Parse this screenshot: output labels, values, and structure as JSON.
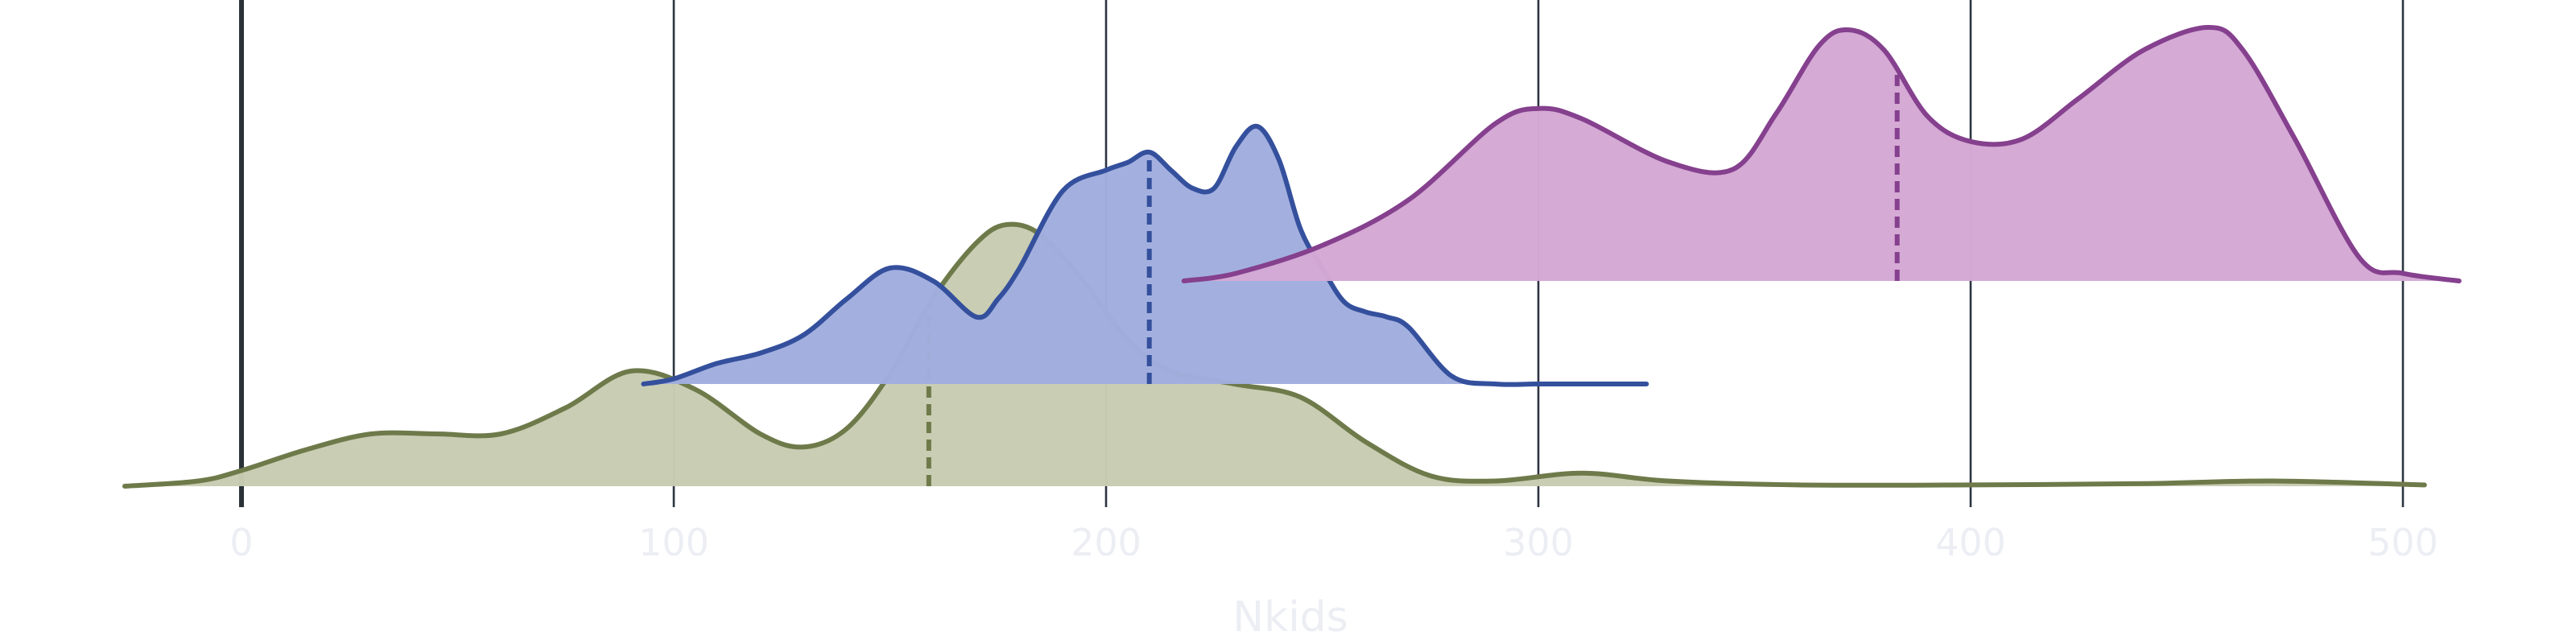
{
  "chart_data": {
    "type": "area",
    "subtype": "ridgeline density",
    "title": "",
    "xlabel": "Nkids",
    "ylabel": "",
    "xlim": [
      -27,
      513
    ],
    "xticks": [
      0,
      100,
      200,
      300,
      400,
      500
    ],
    "grid": "vertical lines only",
    "legend": "none",
    "series": [
      {
        "row": 0,
        "color": "#6e7a4a",
        "fill": "#c8ccb1",
        "median": 159,
        "x": [
          -27,
          -10,
          0,
          15,
          30,
          45,
          60,
          75,
          90,
          105,
          120,
          130,
          140,
          150,
          160,
          170,
          177,
          185,
          195,
          205,
          215,
          230,
          245,
          260,
          275,
          290,
          310,
          330,
          360,
          400,
          440,
          470,
          505
        ],
        "density": [
          0.0,
          0.02,
          0.06,
          0.14,
          0.2,
          0.2,
          0.2,
          0.3,
          0.44,
          0.37,
          0.2,
          0.15,
          0.22,
          0.43,
          0.72,
          0.93,
          1.0,
          0.96,
          0.78,
          0.56,
          0.44,
          0.39,
          0.34,
          0.17,
          0.04,
          0.02,
          0.05,
          0.02,
          0.005,
          0.005,
          0.01,
          0.02,
          0.005
        ]
      },
      {
        "row": 1,
        "color": "#34509d",
        "fill": "#a1aede",
        "median": 210,
        "x": [
          93,
          100,
          110,
          120,
          130,
          140,
          150,
          160,
          170,
          175,
          180,
          190,
          200,
          205,
          210,
          215,
          220,
          225,
          230,
          235,
          240,
          245,
          250,
          255,
          260,
          265,
          270,
          280,
          290,
          300,
          310,
          325
        ],
        "density": [
          0.0,
          0.02,
          0.08,
          0.12,
          0.19,
          0.33,
          0.45,
          0.4,
          0.26,
          0.33,
          0.45,
          0.75,
          0.83,
          0.86,
          0.9,
          0.83,
          0.76,
          0.76,
          0.92,
          1.0,
          0.87,
          0.6,
          0.45,
          0.32,
          0.28,
          0.26,
          0.22,
          0.03,
          0.0,
          0.0,
          0.0,
          0.0
        ]
      },
      {
        "row": 2,
        "color": "#85408e",
        "fill": "#d4a8d4",
        "median": 383,
        "x": [
          218,
          230,
          250,
          270,
          290,
          300,
          310,
          330,
          345,
          355,
          365,
          372,
          380,
          390,
          400,
          412,
          425,
          440,
          455,
          463,
          475,
          490,
          500,
          513
        ],
        "density": [
          0.0,
          0.03,
          0.14,
          0.32,
          0.62,
          0.68,
          0.64,
          0.47,
          0.44,
          0.66,
          0.93,
          0.99,
          0.91,
          0.65,
          0.55,
          0.56,
          0.72,
          0.91,
          1.0,
          0.91,
          0.56,
          0.09,
          0.03,
          0.0
        ]
      }
    ]
  },
  "style": {
    "grid_color": "#2c3440",
    "zero_line_color": "#2a3238",
    "tick_label_color": "#eceef4"
  }
}
